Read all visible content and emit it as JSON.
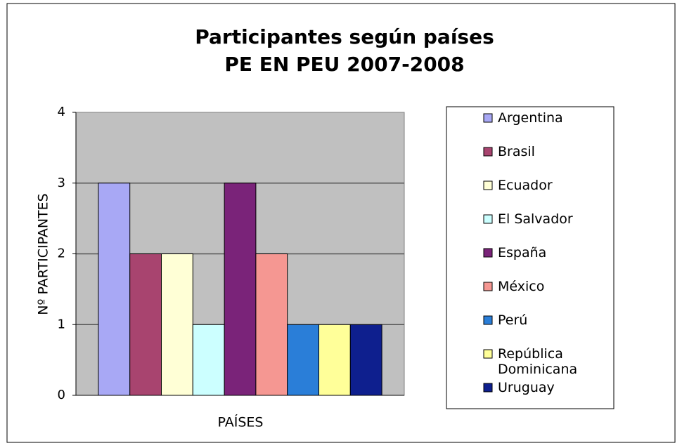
{
  "chart_data": {
    "type": "bar",
    "title": [
      "Participantes según países",
      "PE EN PEU 2007-2008"
    ],
    "x_label": "PAÍSES",
    "y_label": "Nº PARTICIPANTES",
    "categories": [
      null
    ],
    "series": [
      {
        "name": "Argentina",
        "color": "#a8a8f5",
        "values": [
          3
        ]
      },
      {
        "name": "Brasil",
        "color": "#a8446f",
        "values": [
          2
        ]
      },
      {
        "name": "Ecuador",
        "color": "#ffffd6",
        "values": [
          2
        ]
      },
      {
        "name": "El Salvador",
        "color": "#ccffff",
        "values": [
          1
        ]
      },
      {
        "name": "España",
        "color": "#7a2379",
        "values": [
          3
        ]
      },
      {
        "name": "México",
        "color": "#f59792",
        "values": [
          2
        ]
      },
      {
        "name": "Perú",
        "color": "#2a7ed8",
        "values": [
          1
        ]
      },
      {
        "name": "República Dominicana",
        "color": "#ffff99",
        "values": [
          1
        ]
      },
      {
        "name": "Uruguay",
        "color": "#0e1f8e",
        "values": [
          1
        ]
      }
    ],
    "ylim": [
      0,
      4
    ],
    "yticks": [
      0,
      1,
      2,
      3,
      4
    ],
    "grid": true,
    "legend": "right"
  }
}
